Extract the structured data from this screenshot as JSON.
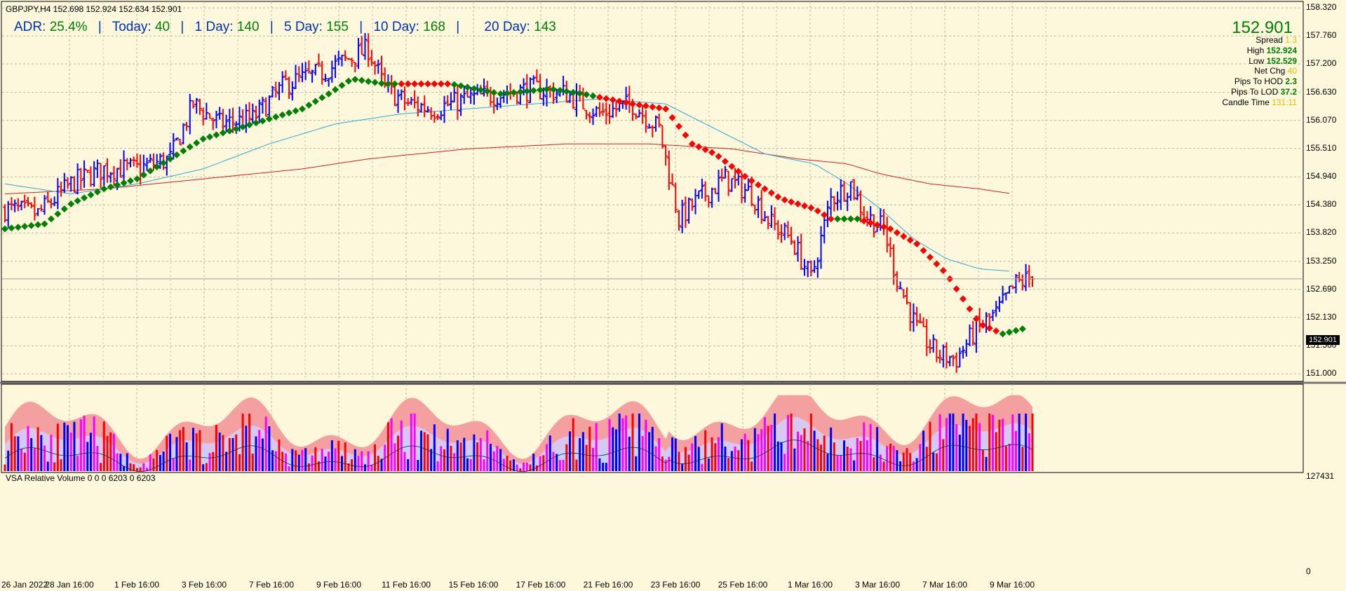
{
  "header": {
    "symbol_line": "GBPJPY,H4  152.698 152.924 152.634 152.901",
    "adr_label": "ADR:",
    "adr_value": "25.4%",
    "today_label": "Today:",
    "today_value": "40",
    "d1_label": "1 Day:",
    "d1_value": "140",
    "d5_label": "5 Day:",
    "d5_value": "155",
    "d10_label": "10 Day:",
    "d10_value": "168",
    "d20_label": "20 Day:",
    "d20_value": "143",
    "sep": "|"
  },
  "info_panel": {
    "price": "152.901",
    "rows": [
      {
        "label": "Spread",
        "value": "1.3",
        "color": "yellow"
      },
      {
        "label": "High",
        "value": "152.924",
        "color": "green"
      },
      {
        "label": "Low",
        "value": "152.529",
        "color": "green"
      },
      {
        "label": "Net Chg",
        "value": "40",
        "color": "yellow"
      },
      {
        "label": "Pips To HOD",
        "value": "2.3",
        "color": "green"
      },
      {
        "label": "Pips To LOD",
        "value": "37.2",
        "color": "green"
      },
      {
        "label": "Candle Time",
        "value": "131:11",
        "color": "yellow"
      }
    ]
  },
  "volume_panel": {
    "title": "VSA Relative Volume 0 0 0 6203 0 6203",
    "top_label": "127431",
    "bottom_label": "0"
  },
  "price_tag": "152.901",
  "colors": {
    "background": "#fdf8dc",
    "bull": "#0000ff",
    "bear": "#ff0000",
    "trend_up": "#008000",
    "trend_down": "#ff0000",
    "ma_fast": "#2ba9d6",
    "ma_slow": "#d62020",
    "vol_climax": "#ff00ff"
  },
  "chart_data": [
    {
      "type": "ohlc",
      "symbol": "GBPJPY",
      "timeframe": "H4",
      "ylim": [
        150.85,
        158.45
      ],
      "y_ticks": [
        "158.320",
        "157.760",
        "157.200",
        "156.630",
        "156.070",
        "155.510",
        "154.940",
        "154.380",
        "153.820",
        "153.250",
        "152.690",
        "152.130",
        "151.560",
        "151.000"
      ],
      "x_ticks": [
        "26 Jan 2022",
        "28 Jan 16:00",
        "1 Feb 16:00",
        "3 Feb 16:00",
        "7 Feb 16:00",
        "9 Feb 16:00",
        "11 Feb 16:00",
        "15 Feb 16:00",
        "17 Feb 16:00",
        "21 Feb 16:00",
        "23 Feb 16:00",
        "25 Feb 16:00",
        "1 Mar 16:00",
        "3 Mar 16:00",
        "7 Mar 16:00",
        "9 Mar 16:00"
      ],
      "last": 152.901,
      "anchors": [
        [
          0,
          154.3
        ],
        [
          10,
          154.2
        ],
        [
          20,
          154.8
        ],
        [
          30,
          155.1
        ],
        [
          40,
          155.1
        ],
        [
          50,
          155.3
        ],
        [
          57,
          156.4
        ],
        [
          65,
          156.0
        ],
        [
          75,
          156.1
        ],
        [
          85,
          156.8
        ],
        [
          95,
          157.0
        ],
        [
          104,
          157.3
        ],
        [
          110,
          157.5
        ],
        [
          115,
          156.7
        ],
        [
          122,
          156.4
        ],
        [
          130,
          156.3
        ],
        [
          140,
          156.5
        ],
        [
          150,
          156.6
        ],
        [
          160,
          156.7
        ],
        [
          170,
          156.6
        ],
        [
          180,
          156.2
        ],
        [
          190,
          156.4
        ],
        [
          198,
          155.9
        ],
        [
          204,
          154.1
        ],
        [
          210,
          154.5
        ],
        [
          218,
          154.9
        ],
        [
          226,
          154.6
        ],
        [
          232,
          154.0
        ],
        [
          238,
          153.7
        ],
        [
          244,
          152.9
        ],
        [
          250,
          154.5
        ],
        [
          256,
          154.8
        ],
        [
          260,
          154.2
        ],
        [
          266,
          153.9
        ],
        [
          270,
          152.9
        ],
        [
          276,
          151.9
        ],
        [
          282,
          151.4
        ],
        [
          288,
          151.3
        ],
        [
          294,
          151.9
        ],
        [
          300,
          152.2
        ],
        [
          306,
          152.8
        ],
        [
          310,
          152.9
        ]
      ],
      "trend_line": [
        [
          0,
          153.9
        ],
        [
          12,
          154.0
        ],
        [
          20,
          154.4
        ],
        [
          30,
          154.7
        ],
        [
          40,
          154.9
        ],
        [
          50,
          155.3
        ],
        [
          60,
          155.7
        ],
        [
          70,
          155.9
        ],
        [
          80,
          156.1
        ],
        [
          90,
          156.3
        ],
        [
          98,
          156.6
        ],
        [
          105,
          156.9
        ],
        [
          115,
          156.8
        ],
        [
          135,
          156.8
        ],
        [
          150,
          156.6
        ],
        [
          165,
          156.7
        ],
        [
          175,
          156.6
        ],
        [
          190,
          156.4
        ],
        [
          200,
          156.3
        ],
        [
          208,
          155.6
        ],
        [
          215,
          155.4
        ],
        [
          225,
          154.9
        ],
        [
          235,
          154.5
        ],
        [
          245,
          154.3
        ],
        [
          250,
          154.1
        ],
        [
          258,
          154.1
        ],
        [
          268,
          153.9
        ],
        [
          276,
          153.6
        ],
        [
          285,
          153.0
        ],
        [
          295,
          152.0
        ],
        [
          302,
          151.8
        ],
        [
          308,
          151.9
        ]
      ],
      "trend_colors": [
        [
          0,
          "up"
        ],
        [
          120,
          "down"
        ],
        [
          135,
          "up"
        ],
        [
          180,
          "down"
        ],
        [
          252,
          "up"
        ],
        [
          260,
          "down"
        ],
        [
          302,
          "up"
        ]
      ],
      "ma_fast": [
        [
          0,
          154.8
        ],
        [
          20,
          154.6
        ],
        [
          40,
          154.8
        ],
        [
          60,
          155.1
        ],
        [
          80,
          155.6
        ],
        [
          100,
          156.0
        ],
        [
          120,
          156.2
        ],
        [
          140,
          156.3
        ],
        [
          160,
          156.4
        ],
        [
          180,
          156.5
        ],
        [
          200,
          156.4
        ],
        [
          215,
          155.9
        ],
        [
          230,
          155.4
        ],
        [
          245,
          155.2
        ],
        [
          255,
          154.8
        ],
        [
          265,
          154.3
        ],
        [
          275,
          153.7
        ],
        [
          285,
          153.3
        ],
        [
          295,
          153.1
        ],
        [
          305,
          153.05
        ]
      ],
      "ma_slow": [
        [
          0,
          154.6
        ],
        [
          30,
          154.7
        ],
        [
          60,
          154.9
        ],
        [
          90,
          155.1
        ],
        [
          110,
          155.3
        ],
        [
          140,
          155.5
        ],
        [
          170,
          155.6
        ],
        [
          195,
          155.6
        ],
        [
          220,
          155.5
        ],
        [
          240,
          155.3
        ],
        [
          255,
          155.2
        ],
        [
          265,
          155.0
        ],
        [
          280,
          154.8
        ],
        [
          295,
          154.7
        ],
        [
          305,
          154.6
        ]
      ]
    },
    {
      "type": "bar",
      "title": "VSA Relative Volume 0 0 0 6203 0 6203",
      "ylim": [
        0,
        127431
      ],
      "bar_colors": [
        "bull",
        "bear",
        "climax"
      ]
    }
  ]
}
